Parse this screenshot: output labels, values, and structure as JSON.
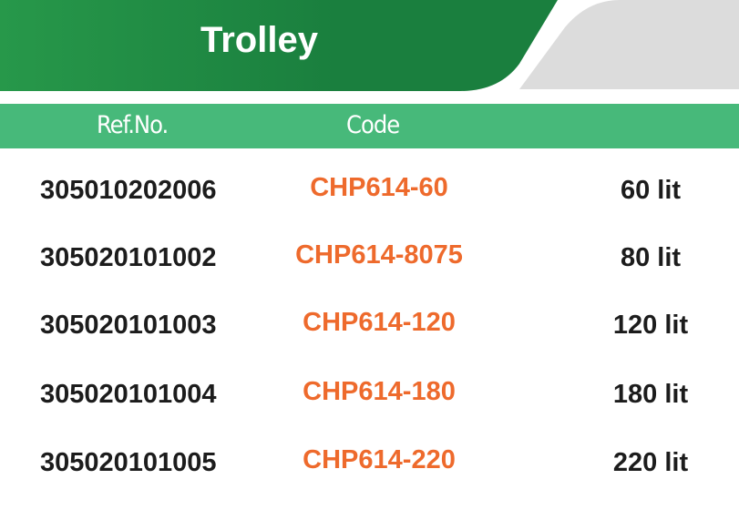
{
  "title": "Trolley",
  "headers": {
    "ref": "Ref.No.",
    "code": "Code"
  },
  "colors": {
    "header_green": "#1a7f3e",
    "band_green": "#47b97a",
    "code_orange": "#ee6a2c",
    "gray": "#dcdcdc"
  },
  "rows": [
    {
      "ref": "305010202006",
      "code": "CHP614-60",
      "volume": "60 lit"
    },
    {
      "ref": "305020101002",
      "code": "CHP614-8075",
      "volume": "80 lit"
    },
    {
      "ref": "305020101003",
      "code": "CHP614-120",
      "volume": "120 lit"
    },
    {
      "ref": "305020101004",
      "code": "CHP614-180",
      "volume": "180 lit"
    },
    {
      "ref": "305020101005",
      "code": "CHP614-220",
      "volume": "220 lit"
    }
  ]
}
